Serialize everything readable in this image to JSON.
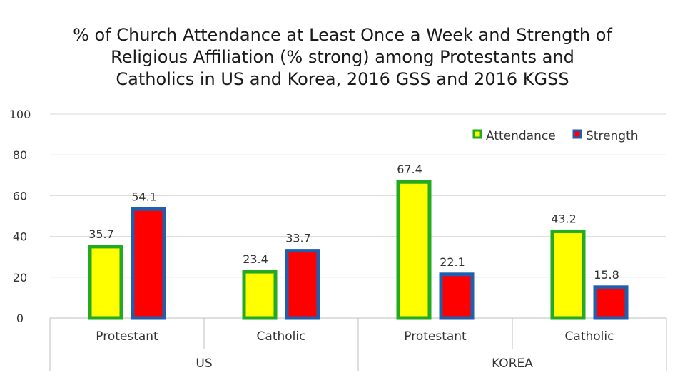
{
  "chart_data": {
    "type": "bar",
    "title": "% of Church Attendance at Least Once a Week and Strength of Religious Affiliation (% strong) among Protestants and Catholics in US and Korea, 2016 GSS and 2016 KGSS",
    "title_lines": [
      "% of Church Attendance at Least Once a Week and Strength of",
      "Religious Affiliation (% strong) among Protestants and",
      "Catholics in US and Korea, 2016 GSS and 2016 KGSS"
    ],
    "xlabel": "",
    "ylabel": "",
    "ylim": [
      0,
      100
    ],
    "yticks": [
      0,
      20,
      40,
      60,
      80,
      100
    ],
    "grid": true,
    "legend_position": "top-right",
    "categories": [
      "Protestant",
      "Catholic",
      "Protestant",
      "Catholic"
    ],
    "groups": [
      {
        "label": "US",
        "categories": [
          0,
          1
        ]
      },
      {
        "label": "KOREA",
        "categories": [
          2,
          3
        ]
      }
    ],
    "series": [
      {
        "name": "Attendance",
        "fill": "#ffff00",
        "border": "#22aa22",
        "values": [
          35.7,
          23.4,
          67.4,
          43.2
        ]
      },
      {
        "name": "Strength",
        "fill": "#ff0000",
        "border": "#1f5fae",
        "values": [
          54.1,
          33.7,
          22.1,
          15.8
        ]
      }
    ]
  },
  "colors": {
    "gridline": "#d9d9d9",
    "axis": "#bfbfbf"
  }
}
